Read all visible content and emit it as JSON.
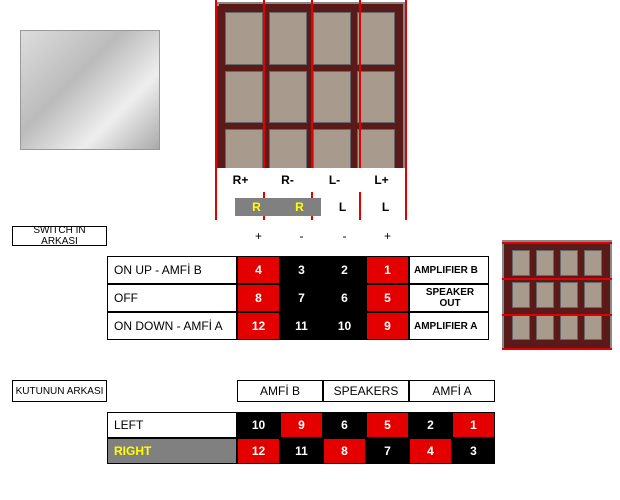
{
  "colors": {
    "red": "#e50000",
    "black": "#000000",
    "gray": "#808080",
    "yellow": "#ffff00",
    "white": "#ffffff"
  },
  "topPhoto": {
    "columnLabels": [
      "R+",
      "R-",
      "L-",
      "L+"
    ],
    "rrll": [
      {
        "text": "R",
        "bg": "gray",
        "fg": "yellow"
      },
      {
        "text": "R",
        "bg": "gray",
        "fg": "yellow"
      },
      {
        "text": "L",
        "bg": "white",
        "fg": "black"
      },
      {
        "text": "L",
        "bg": "white",
        "fg": "black"
      }
    ]
  },
  "rightPhotoRows": [
    "AMPLIFIER B",
    "SPEAKER OUT",
    "AMPLIFIER A"
  ],
  "table1": {
    "header": "SWITCH IN ARKASI",
    "signs": [
      "+",
      "-",
      "-",
      "+"
    ],
    "rows": [
      {
        "label": "ON UP - AMFİ B",
        "cells": [
          {
            "v": "4",
            "bg": "red"
          },
          {
            "v": "3",
            "bg": "black"
          },
          {
            "v": "2",
            "bg": "black"
          },
          {
            "v": "1",
            "bg": "red"
          }
        ],
        "amp": "AMPLIFIER B"
      },
      {
        "label": "OFF",
        "cells": [
          {
            "v": "8",
            "bg": "red"
          },
          {
            "v": "7",
            "bg": "black"
          },
          {
            "v": "6",
            "bg": "black"
          },
          {
            "v": "5",
            "bg": "red"
          }
        ],
        "amp": "SPEAKER OUT"
      },
      {
        "label": "ON DOWN - AMFİ A",
        "cells": [
          {
            "v": "12",
            "bg": "red"
          },
          {
            "v": "11",
            "bg": "black"
          },
          {
            "v": "10",
            "bg": "black"
          },
          {
            "v": "9",
            "bg": "red"
          }
        ],
        "amp": "AMPLIFIER A"
      }
    ]
  },
  "table2": {
    "header": "KUTUNUN ARKASI",
    "columns": [
      "AMFİ B",
      "SPEAKERS",
      "AMFİ A"
    ],
    "rows": [
      {
        "label": "LEFT",
        "labelBg": "white",
        "labelFg": "black",
        "cells": [
          {
            "v": "10",
            "bg": "black"
          },
          {
            "v": "9",
            "bg": "red"
          },
          {
            "v": "6",
            "bg": "black"
          },
          {
            "v": "5",
            "bg": "red"
          },
          {
            "v": "2",
            "bg": "black"
          },
          {
            "v": "1",
            "bg": "red"
          }
        ]
      },
      {
        "label": "RIGHT",
        "labelBg": "gray",
        "labelFg": "yellow",
        "cells": [
          {
            "v": "12",
            "bg": "red"
          },
          {
            "v": "11",
            "bg": "black"
          },
          {
            "v": "8",
            "bg": "red"
          },
          {
            "v": "7",
            "bg": "black"
          },
          {
            "v": "4",
            "bg": "red"
          },
          {
            "v": "3",
            "bg": "black"
          }
        ]
      }
    ]
  }
}
